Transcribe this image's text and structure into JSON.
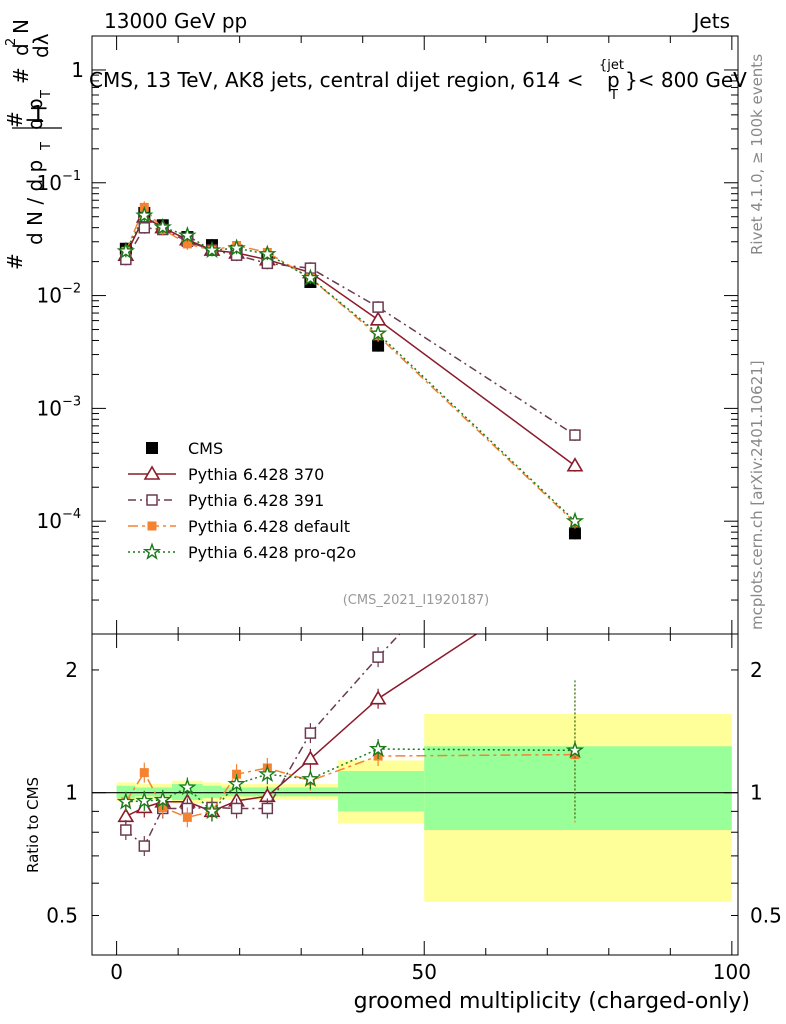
{
  "header": {
    "left": "13000 GeV pp",
    "right": "Jets"
  },
  "side_labels": {
    "rivet": "Rivet 4.1.0, ≥ 100k events",
    "mcplots": "mcplots.cern.ch [arXiv:2401.10621]"
  },
  "colors": {
    "cms": "#000000",
    "p370": "#8b1a2b",
    "p391": "#6b3a50",
    "pdefault": "#f58231",
    "pq2o": "#1a7a1a",
    "band_yellow": "#ffff99",
    "band_green": "#99ff99"
  },
  "chart_data": [
    {
      "type": "scatter",
      "title": "CMS, 13 TeV, AK8 jets, central dijet region, 614 < p_T^{jet} < 800 GeV",
      "title_main": "CMS, 13 TeV, AK8 jets, central dijet region, 614 <",
      "title_p": "p",
      "title_sub": "T",
      "title_sup": "{jet",
      "title_tail": "}< 800 GeV",
      "ylabel": "1/(dN/dp_T) d^2N/(dp_T dlambda)",
      "yscale": "log",
      "ylim": [
        1e-05,
        2
      ],
      "xlim": [
        -4,
        101
      ],
      "y_ticks": [
        {
          "value": 1,
          "label": "1"
        },
        {
          "value": 0.1,
          "label": "10",
          "exp": "−1"
        },
        {
          "value": 0.01,
          "label": "10",
          "exp": "−2"
        },
        {
          "value": 0.001,
          "label": "10",
          "exp": "−3"
        },
        {
          "value": 0.0001,
          "label": "10",
          "exp": "−4"
        }
      ],
      "watermark": "(CMS_2021_I1920187)",
      "series": [
        {
          "name": "CMS",
          "key": "cms",
          "marker": "square",
          "x": [
            1.5,
            4.5,
            7.5,
            11.5,
            15.5,
            19.5,
            24.5,
            31.5,
            42.5,
            74.5
          ],
          "y": [
            0.026,
            0.054,
            0.042,
            0.033,
            0.028,
            0.025,
            0.021,
            0.0132,
            0.0036,
            7.8e-05
          ]
        },
        {
          "name": "Pythia 6.428 370",
          "key": "p370",
          "marker": "triangle",
          "line": "solid",
          "x": [
            1.5,
            4.5,
            7.5,
            11.5,
            15.5,
            19.5,
            24.5,
            31.5,
            42.5,
            74.5
          ],
          "y": [
            0.0228,
            0.0498,
            0.0401,
            0.0313,
            0.0253,
            0.0239,
            0.0208,
            0.016,
            0.0061,
            0.00031
          ]
        },
        {
          "name": "Pythia 6.428 391",
          "key": "p391",
          "marker": "open-square",
          "line": "dashdot",
          "x": [
            1.5,
            4.5,
            7.5,
            11.5,
            15.5,
            19.5,
            24.5,
            31.5,
            42.5,
            74.5
          ],
          "y": [
            0.0209,
            0.0399,
            0.0385,
            0.0303,
            0.0253,
            0.0228,
            0.0193,
            0.0175,
            0.0079,
            0.00058
          ]
        },
        {
          "name": "Pythia 6.428 default",
          "key": "pdefault",
          "marker": "filled-square",
          "line": "dashdot2",
          "x": [
            1.5,
            4.5,
            7.5,
            11.5,
            15.5,
            19.5,
            24.5,
            31.5,
            42.5,
            74.5
          ],
          "y": [
            0.0247,
            0.0605,
            0.0387,
            0.0287,
            0.0253,
            0.0278,
            0.0241,
            0.0143,
            0.0044,
            9.7e-05
          ]
        },
        {
          "name": "Pythia 6.428 pro-q2o",
          "key": "pq2o",
          "marker": "star",
          "line": "dotted",
          "x": [
            1.5,
            4.5,
            7.5,
            11.5,
            15.5,
            19.5,
            24.5,
            31.5,
            42.5,
            74.5
          ],
          "y": [
            0.0247,
            0.0513,
            0.0403,
            0.034,
            0.0252,
            0.0263,
            0.0233,
            0.0143,
            0.0046,
            0.0001
          ]
        }
      ]
    },
    {
      "type": "scatter",
      "ylabel": "Ratio to CMS",
      "xlabel": "groomed multiplicity (charged-only)",
      "yscale": "log",
      "ylim": [
        0.4,
        2.45
      ],
      "xlim": [
        -4,
        101
      ],
      "y_ticks": [
        {
          "value": 0.5,
          "label": "0.5"
        },
        {
          "value": 1,
          "label": "1"
        },
        {
          "value": 2,
          "label": "2"
        }
      ],
      "x_ticks": [
        {
          "value": 0,
          "label": "0"
        },
        {
          "value": 50,
          "label": "50"
        },
        {
          "value": 100,
          "label": "100"
        }
      ],
      "bands": [
        {
          "x0": 0,
          "x1": 3,
          "yellow": [
            0.95,
            1.06
          ],
          "green": [
            0.97,
            1.04
          ]
        },
        {
          "x0": 3,
          "x1": 6,
          "yellow": [
            0.96,
            1.05
          ],
          "green": [
            0.98,
            1.03
          ]
        },
        {
          "x0": 6,
          "x1": 9,
          "yellow": [
            0.96,
            1.05
          ],
          "green": [
            0.98,
            1.03
          ]
        },
        {
          "x0": 9,
          "x1": 14,
          "yellow": [
            0.94,
            1.07
          ],
          "green": [
            0.96,
            1.05
          ]
        },
        {
          "x0": 14,
          "x1": 17,
          "yellow": [
            0.95,
            1.06
          ],
          "green": [
            0.97,
            1.04
          ]
        },
        {
          "x0": 17,
          "x1": 22,
          "yellow": [
            0.96,
            1.05
          ],
          "green": [
            0.98,
            1.03
          ]
        },
        {
          "x0": 22,
          "x1": 27,
          "yellow": [
            0.96,
            1.05
          ],
          "green": [
            0.98,
            1.03
          ]
        },
        {
          "x0": 27,
          "x1": 36,
          "yellow": [
            0.96,
            1.05
          ],
          "green": [
            0.98,
            1.03
          ]
        },
        {
          "x0": 36,
          "x1": 50,
          "yellow": [
            0.84,
            1.2
          ],
          "green": [
            0.9,
            1.13
          ]
        },
        {
          "x0": 50,
          "x1": 100,
          "yellow": [
            0.54,
            1.56
          ],
          "green": [
            0.81,
            1.3
          ]
        }
      ],
      "series": [
        {
          "name": "Pythia 6.428 370",
          "key": "p370",
          "marker": "triangle",
          "line": "solid",
          "x": [
            1.5,
            4.5,
            7.5,
            11.5,
            15.5,
            19.5,
            24.5,
            31.5,
            42.5,
            58.5
          ],
          "y": [
            0.875,
            0.92,
            0.95,
            0.95,
            0.9,
            0.955,
            0.98,
            1.21,
            1.7,
            2.45
          ]
        },
        {
          "name": "Pythia 6.428 391",
          "key": "p391",
          "marker": "open-square",
          "line": "dashdot",
          "x": [
            1.5,
            4.5,
            7.5,
            11.5,
            15.5,
            19.5,
            24.5,
            31.5,
            42.5,
            46.0
          ],
          "y": [
            0.81,
            0.74,
            0.915,
            0.915,
            0.92,
            0.915,
            0.915,
            1.4,
            2.15,
            2.45
          ]
        },
        {
          "name": "Pythia 6.428 default",
          "key": "pdefault",
          "marker": "filled-square",
          "line": "dashdot2",
          "x": [
            1.5,
            4.5,
            7.5,
            11.5,
            15.5,
            19.5,
            24.5,
            31.5,
            42.5,
            74.5
          ],
          "y": [
            0.95,
            1.12,
            0.92,
            0.87,
            0.9,
            1.11,
            1.15,
            1.07,
            1.23,
            1.24
          ]
        },
        {
          "name": "Pythia 6.428 pro-q2o",
          "key": "pq2o",
          "marker": "star",
          "line": "dotted",
          "x": [
            1.5,
            4.5,
            7.5,
            11.5,
            15.5,
            19.5,
            24.5,
            31.5,
            42.5,
            74.5
          ],
          "y": [
            0.95,
            0.955,
            0.96,
            1.03,
            0.9,
            1.05,
            1.11,
            1.08,
            1.28,
            1.27
          ]
        }
      ]
    }
  ]
}
